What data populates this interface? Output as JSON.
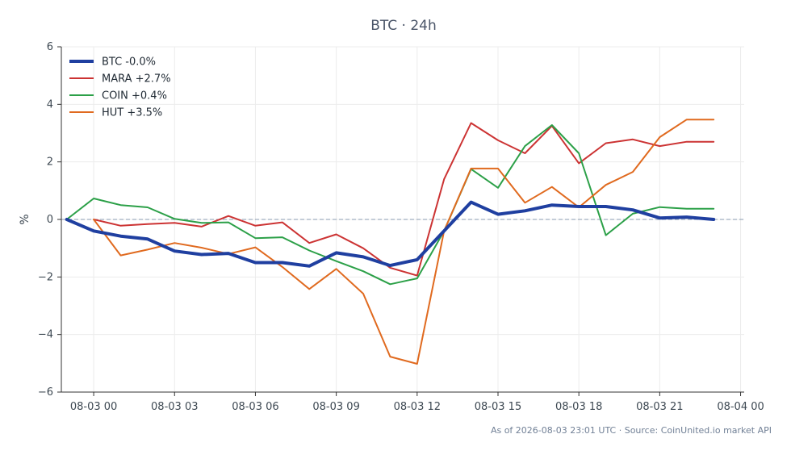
{
  "chart_data": {
    "type": "line",
    "title": "BTC · 24h",
    "xlabel": "",
    "ylabel": "%",
    "ylim": [
      -6,
      6
    ],
    "yticks": [
      -6,
      -4,
      -2,
      0,
      2,
      4,
      6
    ],
    "ytick_labels": [
      "−6",
      "−4",
      "−2",
      "0",
      "2",
      "4",
      "6"
    ],
    "xlim": [
      "2026-08-02 22:48",
      "2026-08-04 00:08"
    ],
    "xtick_labels": [
      "08-03 00",
      "08-03 03",
      "08-03 06",
      "08-03 09",
      "08-03 12",
      "08-03 15",
      "08-03 18",
      "08-03 21",
      "08-04 00"
    ],
    "x": [
      "2026-08-02 23:00",
      "2026-08-03 00:00",
      "2026-08-03 01:00",
      "2026-08-03 02:00",
      "2026-08-03 03:00",
      "2026-08-03 04:00",
      "2026-08-03 05:00",
      "2026-08-03 06:00",
      "2026-08-03 07:00",
      "2026-08-03 08:00",
      "2026-08-03 09:00",
      "2026-08-03 10:00",
      "2026-08-03 11:00",
      "2026-08-03 12:00",
      "2026-08-03 13:00",
      "2026-08-03 14:00",
      "2026-08-03 15:00",
      "2026-08-03 16:00",
      "2026-08-03 17:00",
      "2026-08-03 18:00",
      "2026-08-03 19:00",
      "2026-08-03 20:00",
      "2026-08-03 21:00",
      "2026-08-03 22:00",
      "2026-08-03 23:00"
    ],
    "grid": true,
    "legend_position": "top-left",
    "zero_line": true,
    "series": [
      {
        "name": "BTC -0.0%",
        "color": "#1f3fa0",
        "values": [
          0.0,
          -0.4,
          -0.58,
          -0.68,
          -1.1,
          -1.22,
          -1.18,
          -1.5,
          -1.5,
          -1.62,
          -1.16,
          -1.3,
          -1.6,
          -1.4,
          -0.4,
          0.6,
          0.18,
          0.3,
          0.5,
          0.45,
          0.45,
          0.33,
          0.05,
          0.08,
          0.0
        ]
      },
      {
        "name": "MARA +2.7%",
        "color": "#cc3333",
        "values": [
          null,
          0.0,
          -0.22,
          -0.16,
          -0.12,
          -0.25,
          0.12,
          -0.22,
          -0.1,
          -0.82,
          -0.52,
          -1.0,
          -1.68,
          -1.95,
          1.4,
          3.35,
          2.75,
          2.3,
          3.25,
          1.95,
          2.65,
          2.78,
          2.55,
          2.7,
          2.7
        ]
      },
      {
        "name": "COIN +0.4%",
        "color": "#2ca048",
        "values": [
          0.0,
          0.73,
          0.5,
          0.42,
          0.02,
          -0.12,
          -0.1,
          -0.65,
          -0.62,
          -1.08,
          -1.45,
          -1.8,
          -2.25,
          -2.05,
          -0.4,
          1.75,
          1.1,
          2.55,
          3.28,
          2.3,
          -0.55,
          0.2,
          0.43,
          0.37,
          0.37
        ]
      },
      {
        "name": "HUT +3.5%",
        "color": "#e06a1f",
        "values": [
          null,
          0.0,
          -1.25,
          -1.05,
          -0.82,
          -0.98,
          -1.2,
          -0.97,
          -1.65,
          -2.42,
          -1.72,
          -2.58,
          -4.77,
          -5.02,
          -0.4,
          1.77,
          1.77,
          0.58,
          1.13,
          0.42,
          1.2,
          1.65,
          2.86,
          3.47,
          3.47
        ]
      }
    ]
  },
  "footer": {
    "text": "As of 2026-08-03 23:01 UTC · Source: CoinUnited.io market API"
  }
}
